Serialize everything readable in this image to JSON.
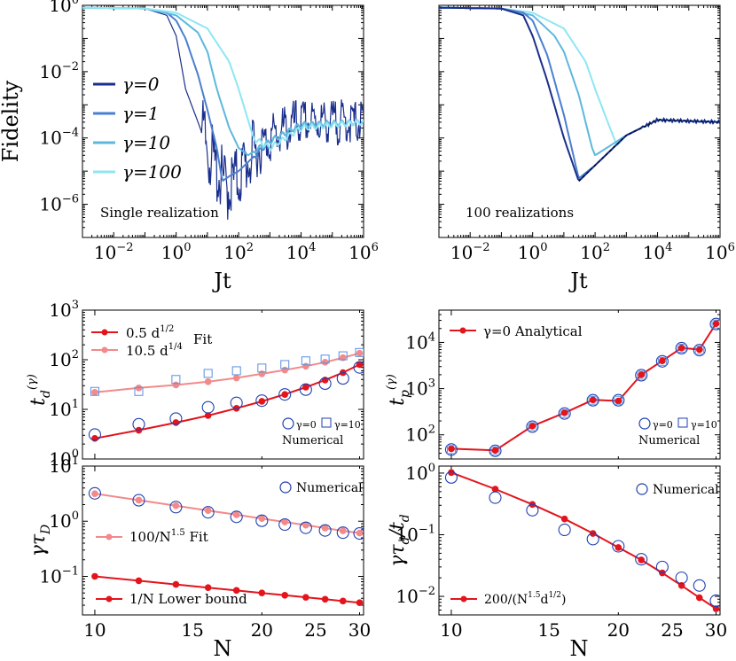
{
  "colors": {
    "gamma0": "#1a2e8c",
    "gamma1": "#4a7fd0",
    "gamma10": "#5cb8dc",
    "gamma100": "#8ee6f4",
    "fit_red": "#e3141c",
    "fit_pink": "#f28a8a",
    "marker_blue": "#1f3fb0"
  },
  "text": {
    "fidelity_label": "Fidelity",
    "jt_label": "Jt",
    "single": "Single realization",
    "hundred": "100 realizations",
    "n_label": "N",
    "legend_g0": "γ=0",
    "legend_g1": "γ=1",
    "legend_g10": "γ=10",
    "legend_g100": "γ=100",
    "fit1": "0.5 d",
    "fit1_exp": "1/2",
    "fit_word": "Fit",
    "fit2": "10.5 d",
    "fit2_exp": "1/4",
    "numerical": "Numerical",
    "small_g0": "γ=0",
    "small_g10": "γ=10",
    "analytical": "γ=0 Analytical",
    "fit3": "100/N",
    "fit3_exp": "1.5",
    "fit3_tail": " Fit",
    "lower_bound": "1/N Lower bound",
    "fit4_pre": "200/(N",
    "fit4_e1": "1.5",
    "fit4_mid": "d",
    "fit4_e2": "1/2",
    "fit4_post": ")",
    "ylabel_td": "t",
    "ylabel_tp": "t",
    "ylabel_gt": "γτ",
    "ylabel_gt_sub": "D",
    "ylabel_ratio": "γτ",
    "ylabel_ratio_tail": "/t",
    "ylabel_ratio_sub": "d",
    "td_sub": "d",
    "tp_sub": "p",
    "gamma_sup": "(γ)"
  },
  "chart_data": [
    {
      "type": "line",
      "panel": "fidelity-single",
      "xlabel": "Jt",
      "ylabel": "Fidelity",
      "x_scale": "log",
      "y_scale": "log",
      "xlim": [
        0.001,
        1000000
      ],
      "ylim": [
        1e-07,
        1
      ],
      "xticks": [
        "10^-2",
        "10^0",
        "10^2",
        "10^4",
        "10^6"
      ],
      "yticks": [
        "10^0",
        "10^-2",
        "10^-4",
        "10^-6"
      ],
      "annotation": "Single realization",
      "legend": "left",
      "series": [
        {
          "name": "γ=0",
          "x": [
            0.001,
            0.1,
            0.5,
            1,
            2,
            5,
            10,
            20,
            40,
            80,
            200,
            1000,
            10000,
            1000000
          ],
          "y": [
            0.85,
            0.8,
            0.5,
            0.12,
            0.003,
            0.0003,
            5e-05,
            1e-05,
            3e-06,
            5e-06,
            2e-05,
            0.0001,
            0.0003,
            0.0003
          ],
          "noisy": true
        },
        {
          "name": "γ=1",
          "x": [
            0.001,
            0.1,
            0.5,
            1,
            2,
            5,
            10,
            20,
            30,
            50,
            100,
            1000,
            10000,
            1000000
          ],
          "y": [
            0.85,
            0.8,
            0.6,
            0.35,
            0.1,
            0.008,
            0.0007,
            5e-05,
            5e-06,
            7e-06,
            1e-05,
            8e-05,
            0.00025,
            0.0003
          ]
        },
        {
          "name": "γ=10",
          "x": [
            0.001,
            0.1,
            1,
            5,
            10,
            20,
            50,
            100,
            200,
            1000,
            10000,
            1000000
          ],
          "y": [
            0.85,
            0.8,
            0.5,
            0.15,
            0.04,
            0.003,
            0.0002,
            5e-05,
            3e-05,
            8e-05,
            0.00025,
            0.0003
          ]
        },
        {
          "name": "γ=100",
          "x": [
            0.001,
            0.1,
            1,
            10,
            50,
            100,
            300,
            1000,
            10000,
            1000000
          ],
          "y": [
            0.85,
            0.8,
            0.6,
            0.2,
            0.02,
            0.003,
            0.0001,
            5e-05,
            0.0002,
            0.0003
          ]
        }
      ]
    },
    {
      "type": "line",
      "panel": "fidelity-average",
      "xlabel": "Jt",
      "x_scale": "log",
      "y_scale": "log",
      "xlim": [
        0.001,
        1000000
      ],
      "ylim": [
        1e-07,
        1
      ],
      "xticks": [
        "10^-2",
        "10^0",
        "10^2",
        "10^4",
        "10^6"
      ],
      "annotation": "100 realizations",
      "series": [
        {
          "name": "γ=0",
          "x": [
            0.001,
            0.1,
            0.5,
            1,
            3,
            10,
            30,
            100,
            1000,
            10000,
            1000000
          ],
          "y": [
            0.85,
            0.8,
            0.5,
            0.12,
            0.005,
            0.0001,
            5e-06,
            1.5e-05,
            0.00012,
            0.00035,
            0.0003
          ]
        },
        {
          "name": "γ=1",
          "x": [
            0.001,
            0.1,
            0.5,
            1,
            3,
            10,
            30,
            100,
            1000,
            10000,
            1000000
          ],
          "y": [
            0.85,
            0.8,
            0.6,
            0.35,
            0.03,
            0.0005,
            6e-06,
            1.5e-05,
            0.00012,
            0.00035,
            0.0003
          ]
        },
        {
          "name": "γ=10",
          "x": [
            0.001,
            0.1,
            1,
            5,
            10,
            30,
            80,
            100,
            1000,
            10000,
            1000000
          ],
          "y": [
            0.85,
            0.8,
            0.5,
            0.12,
            0.04,
            0.002,
            5e-05,
            3e-05,
            0.00012,
            0.00035,
            0.0003
          ]
        },
        {
          "name": "γ=100",
          "x": [
            0.001,
            0.1,
            1,
            10,
            50,
            100,
            300,
            500,
            1000,
            10000,
            1000000
          ],
          "y": [
            0.85,
            0.8,
            0.6,
            0.2,
            0.02,
            0.003,
            0.0002,
            6e-05,
            0.00012,
            0.00035,
            0.0003
          ]
        }
      ]
    },
    {
      "type": "scatter",
      "panel": "td",
      "ylabel": "t_d^(γ)",
      "x_scale": "log",
      "y_scale": "log",
      "xlim": [
        9.5,
        30.5
      ],
      "ylim": [
        1,
        1000
      ],
      "yticks": [
        "10^3",
        "10^2",
        "10^1",
        "10^0"
      ],
      "x": [
        10,
        12,
        14,
        16,
        18,
        20,
        22,
        24,
        26,
        28,
        30
      ],
      "series": [
        {
          "name": "γ=0",
          "marker": "circle",
          "values": [
            3.1,
            5,
            6.5,
            11,
            13.5,
            15,
            20,
            25,
            33,
            42,
            70
          ]
        },
        {
          "name": "γ=10",
          "marker": "square",
          "values": [
            23,
            23,
            40,
            53,
            60,
            68,
            80,
            95,
            103,
            120,
            140
          ]
        },
        {
          "name": "0.5 d^1/2 Fit",
          "line": true,
          "values": [
            2.6,
            3.8,
            5.4,
            7.5,
            10.5,
            14.5,
            20,
            28,
            39,
            55,
            80
          ]
        },
        {
          "name": "10.5 d^1/4 Fit",
          "line": true,
          "values": [
            22,
            27,
            31,
            36,
            43,
            52,
            62,
            74,
            89,
            110,
            135
          ]
        }
      ],
      "legend_text": [
        "0.5 d^1/2",
        "10.5 d^1/4",
        "Fit",
        "γ=0",
        "γ=10",
        "Numerical"
      ]
    },
    {
      "type": "scatter",
      "panel": "tp",
      "ylabel": "t_p^(γ)",
      "x_scale": "log",
      "y_scale": "log",
      "xlim": [
        9.5,
        30.5
      ],
      "ylim": [
        30,
        50000
      ],
      "yticks": [
        "10^4",
        "10^3",
        "10^2"
      ],
      "x": [
        10,
        12,
        14,
        16,
        18,
        20,
        22,
        24,
        26,
        28,
        30
      ],
      "series": [
        {
          "name": "γ=0",
          "marker": "circle",
          "values": [
            48,
            45,
            150,
            290,
            560,
            560,
            1950,
            3900,
            7500,
            6800,
            25000
          ]
        },
        {
          "name": "γ=10",
          "marker": "square",
          "values": [
            48,
            45,
            150,
            290,
            560,
            560,
            1950,
            3900,
            7500,
            6800,
            25000
          ]
        },
        {
          "name": "γ=0 Analytical",
          "line": true,
          "values": [
            50,
            46,
            155,
            300,
            570,
            540,
            2000,
            4000,
            7600,
            7000,
            25500
          ]
        }
      ],
      "legend_text": [
        "γ=0 Analytical",
        "γ=0",
        "γ=10",
        "Numerical"
      ]
    },
    {
      "type": "scatter",
      "panel": "gamma-tau",
      "xlabel": "N",
      "ylabel": "γτ_D",
      "x_scale": "log",
      "y_scale": "log",
      "xlim": [
        9.5,
        30.5
      ],
      "ylim": [
        0.02,
        10
      ],
      "xticks": [
        10,
        15,
        20,
        25,
        30
      ],
      "yticks": [
        "10^1",
        "10^0",
        "10^-1"
      ],
      "x": [
        10,
        12,
        14,
        16,
        18,
        20,
        22,
        24,
        26,
        28,
        30
      ],
      "series": [
        {
          "name": "Numerical",
          "marker": "circle",
          "values": [
            3.2,
            2.4,
            1.8,
            1.45,
            1.2,
            1.02,
            0.87,
            0.76,
            0.68,
            0.62,
            0.6
          ]
        },
        {
          "name": "100/N^1.5 Fit",
          "line": true,
          "values": [
            3.16,
            2.41,
            1.91,
            1.56,
            1.31,
            1.12,
            0.97,
            0.85,
            0.75,
            0.67,
            0.61
          ]
        },
        {
          "name": "1/N Lower bound",
          "line": true,
          "values": [
            0.1,
            0.0833,
            0.0714,
            0.0625,
            0.0556,
            0.05,
            0.0455,
            0.0417,
            0.0385,
            0.0357,
            0.0333
          ]
        }
      ]
    },
    {
      "type": "scatter",
      "panel": "ratio",
      "xlabel": "N",
      "ylabel": "γτ_D/t_d",
      "x_scale": "log",
      "y_scale": "log",
      "xlim": [
        9.5,
        30.5
      ],
      "ylim": [
        0.005,
        1.3
      ],
      "xticks": [
        10,
        15,
        20,
        25,
        30
      ],
      "yticks": [
        "10^0",
        "10^-1",
        "10^-2"
      ],
      "x": [
        10,
        12,
        14,
        16,
        18,
        20,
        22,
        24,
        26,
        28,
        30
      ],
      "series": [
        {
          "name": "Numerical",
          "marker": "circle",
          "values": [
            0.85,
            0.4,
            0.25,
            0.12,
            0.085,
            0.065,
            0.04,
            0.03,
            0.02,
            0.015,
            0.0085
          ]
        },
        {
          "name": "200/(N^1.5 d^1/2)",
          "line": true,
          "values": [
            1.02,
            0.55,
            0.31,
            0.18,
            0.105,
            0.062,
            0.039,
            0.024,
            0.015,
            0.0095,
            0.0063
          ]
        }
      ]
    }
  ]
}
